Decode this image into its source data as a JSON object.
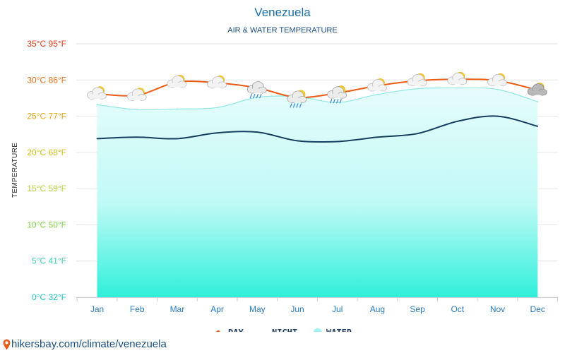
{
  "chart_data": {
    "type": "line",
    "title": "Venezuela",
    "subtitle": "AIR & WATER TEMPERATURE",
    "ylabel": "TEMPERATURE",
    "categories": [
      "Jan",
      "Feb",
      "Mar",
      "Apr",
      "May",
      "Jun",
      "Jul",
      "Aug",
      "Sep",
      "Oct",
      "Nov",
      "Dec"
    ],
    "ylim": [
      0,
      35
    ],
    "yticks": [
      {
        "value": 0,
        "label": "0°C 32°F",
        "color": "#22c9c0"
      },
      {
        "value": 5,
        "label": "5°C 41°F",
        "color": "#3fcfb6"
      },
      {
        "value": 10,
        "label": "10°C 50°F",
        "color": "#7fd44a"
      },
      {
        "value": 15,
        "label": "15°C 59°F",
        "color": "#b5d13a"
      },
      {
        "value": 20,
        "label": "20°C 68°F",
        "color": "#d6c21e"
      },
      {
        "value": 25,
        "label": "25°C 77°F",
        "color": "#e6a612"
      },
      {
        "value": 30,
        "label": "30°C 86°F",
        "color": "#e8701c"
      },
      {
        "value": 35,
        "label": "35°C 95°F",
        "color": "#e2401c"
      }
    ],
    "series": [
      {
        "name": "DAY",
        "type": "line",
        "color": "#ee5a12",
        "values": [
          28.1,
          27.9,
          29.7,
          29.6,
          28.9,
          27.6,
          28.2,
          29.2,
          29.9,
          30.1,
          29.9,
          28.6
        ]
      },
      {
        "name": "NIGHT",
        "type": "line",
        "color": "#163e5e",
        "values": [
          21.9,
          22.1,
          21.9,
          22.7,
          22.8,
          21.6,
          21.5,
          22.1,
          22.6,
          24.3,
          25.0,
          23.6
        ]
      },
      {
        "name": "WATER",
        "type": "area",
        "color": "#a6f2ee",
        "values": [
          26.6,
          25.9,
          26.0,
          26.2,
          27.6,
          27.7,
          26.9,
          28.0,
          28.8,
          28.9,
          28.7,
          27.0
        ]
      }
    ],
    "weather_icons": [
      "partly-cloudy-icon",
      "partly-cloudy-icon",
      "partly-cloudy-icon",
      "partly-cloudy-icon",
      "rain-cloud-icon",
      "rain-partly-cloudy-icon",
      "rain-partly-cloudy-icon",
      "partly-cloudy-icon",
      "partly-cloudy-icon",
      "partly-cloudy-icon",
      "partly-cloudy-icon",
      "overcast-sun-icon"
    ],
    "legend": {
      "position": "bottom-center",
      "items": [
        "DAY",
        "NIGHT",
        "WATER"
      ]
    },
    "grid": true
  },
  "footer": {
    "text": "hikersbay.com/climate/venezuela",
    "icon": "map-pin-icon",
    "icon_color": "#e85d1a"
  }
}
